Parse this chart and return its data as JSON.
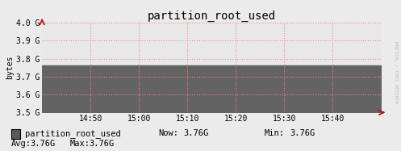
{
  "title": "partition_root_used",
  "ylabel": "bytes",
  "xtick_labels": [
    "14:50",
    "15:00",
    "15:10",
    "15:20",
    "15:30",
    "15:40"
  ],
  "ytick_labels": [
    "3.5 G",
    "3.6 G",
    "3.7 G",
    "3.8 G",
    "3.9 G",
    "4.0 G"
  ],
  "ylim_min": 3500000000,
  "ylim_max": 4000000000,
  "ytick_vals": [
    3500000000,
    3600000000,
    3700000000,
    3800000000,
    3900000000,
    4000000000
  ],
  "xlim_min": 0,
  "xlim_max": 1,
  "data_value": 3760000000,
  "fill_color": "#636363",
  "bg_color": "#EBEBEB",
  "plot_bg_color": "#E8E8E8",
  "grid_color": "#FF8080",
  "grid_linestyle": ":",
  "legend_label": "partition_root_used",
  "legend_box_color": "#595959",
  "now_val": "3.76G",
  "min_val": "3.76G",
  "avg_val": "3.76G",
  "max_val": "3.76G",
  "watermark": "RRDTOOL / TOBI OETIKER",
  "arrow_color": "#CC0000",
  "title_fontsize": 10,
  "tick_fontsize": 7,
  "legend_fontsize": 7.5,
  "watermark_color": "#BBBBBB"
}
